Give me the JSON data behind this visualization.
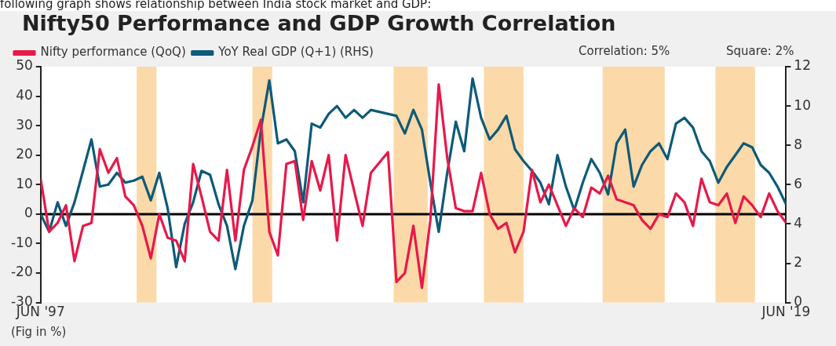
{
  "chart_data": {
    "type": "line",
    "title": "Nifty50 Performance and GDP Growth Correlation",
    "annotations": [
      "following graph shows relationship between India stock market and GDP:",
      "Correlation: 5%",
      "Square: 2%",
      "(Fig in %)"
    ],
    "xlim": [
      "1997-06",
      "2019-06"
    ],
    "xticks": [
      {
        "value": "1997-06",
        "label": "JUN '97"
      },
      {
        "value": "2019-06",
        "label": "JUN '19"
      }
    ],
    "ylim": [
      -30,
      50
    ],
    "yticks": [
      -30,
      -20,
      -10,
      0,
      10,
      20,
      30,
      40,
      50
    ],
    "y2lim": [
      0,
      12
    ],
    "y2ticks": [
      0,
      2,
      4,
      6,
      8,
      10,
      12
    ],
    "legend": "top left",
    "series": [
      {
        "name": "Nifty performance (QoQ)",
        "color": "#e8194a",
        "x": [
          "1997-06",
          "1997-09",
          "1997-12",
          "1998-03",
          "1998-06",
          "1998-09",
          "1998-12",
          "1999-03",
          "1999-06",
          "1999-09",
          "1999-12",
          "2000-03",
          "2000-06",
          "2000-09",
          "2000-12",
          "2001-03",
          "2001-06",
          "2001-09",
          "2001-12",
          "2002-03",
          "2002-06",
          "2002-09",
          "2002-12",
          "2003-03",
          "2003-06",
          "2003-09",
          "2003-12",
          "2004-03",
          "2004-06",
          "2004-09",
          "2004-12",
          "2005-03",
          "2005-06",
          "2005-09",
          "2005-12",
          "2006-03",
          "2006-06",
          "2006-12",
          "2007-03",
          "2007-09",
          "2007-12",
          "2008-03",
          "2008-06",
          "2008-09",
          "2008-12",
          "2009-03",
          "2009-06",
          "2009-09",
          "2009-12",
          "2010-03",
          "2010-06",
          "2010-09",
          "2010-12",
          "2011-03",
          "2011-06",
          "2011-09",
          "2011-12",
          "2012-03",
          "2012-06",
          "2012-12",
          "2013-03",
          "2013-06",
          "2013-09",
          "2013-12",
          "2014-03",
          "2014-06",
          "2014-09",
          "2014-12",
          "2015-03",
          "2015-06",
          "2015-09",
          "2015-12",
          "2016-03",
          "2016-06",
          "2016-09",
          "2016-12",
          "2017-03",
          "2017-06",
          "2017-09",
          "2017-12",
          "2018-03",
          "2018-06",
          "2018-09",
          "2018-12",
          "2019-03",
          "2019-06"
        ],
        "values": [
          12,
          -6,
          -3,
          3,
          -16,
          -4,
          -3,
          22,
          14,
          19,
          6,
          3,
          -4,
          -15,
          0,
          -8,
          -9,
          -16,
          17,
          6,
          -6,
          -9,
          15,
          -9,
          15,
          23,
          32,
          -6,
          -14,
          17,
          18,
          -2,
          18,
          8,
          20,
          -9,
          20,
          -4,
          14,
          21,
          -23,
          -20,
          -4,
          -25,
          -2,
          44,
          19,
          2,
          1,
          1,
          14,
          0,
          -5,
          -3,
          -13,
          -6,
          15,
          4,
          10,
          -4,
          2,
          -1,
          9,
          7,
          13,
          5,
          4,
          3,
          -2,
          -5,
          0,
          -1,
          7,
          4,
          -4,
          12,
          4,
          3,
          7,
          -3,
          6,
          3,
          -1,
          7,
          1,
          -3
        ]
      },
      {
        "name": "YoY Real GDP (Q+1) (RHS)",
        "color": "#0e5a78",
        "axis": "y2",
        "x": [
          "1997-06",
          "1997-09",
          "1997-12",
          "1998-03",
          "1998-06",
          "1998-09",
          "1998-12",
          "1999-03",
          "1999-06",
          "1999-09",
          "1999-12",
          "2000-03",
          "2000-06",
          "2000-09",
          "2000-12",
          "2001-03",
          "2001-06",
          "2001-09",
          "2001-12",
          "2002-03",
          "2002-06",
          "2002-09",
          "2002-12",
          "2003-03",
          "2003-06",
          "2003-09",
          "2003-12",
          "2004-03",
          "2004-06",
          "2004-09",
          "2004-12",
          "2005-03",
          "2005-06",
          "2005-09",
          "2005-12",
          "2006-03",
          "2006-06",
          "2006-09",
          "2006-12",
          "2007-03",
          "2007-06",
          "2007-09",
          "2007-12",
          "2008-03",
          "2008-06",
          "2008-09",
          "2008-12",
          "2009-03",
          "2009-06",
          "2009-09",
          "2009-12",
          "2010-03",
          "2010-06",
          "2010-09",
          "2010-12",
          "2011-03",
          "2011-06",
          "2011-09",
          "2011-12",
          "2012-03",
          "2012-06",
          "2012-09",
          "2012-12",
          "2013-03",
          "2013-06",
          "2013-09",
          "2013-12",
          "2014-03",
          "2014-06",
          "2014-09",
          "2014-12",
          "2015-03",
          "2015-06",
          "2015-09",
          "2015-12",
          "2016-03",
          "2016-06",
          "2016-09",
          "2016-12",
          "2017-03",
          "2017-06",
          "2017-09",
          "2017-12",
          "2018-03",
          "2018-06",
          "2018-09",
          "2018-12",
          "2019-03",
          "2019-06"
        ],
        "values": [
          4.5,
          3.6,
          5.1,
          3.9,
          5.1,
          6.7,
          8.3,
          5.9,
          6.0,
          6.6,
          6.1,
          6.2,
          6.4,
          5.2,
          6.6,
          4.8,
          1.8,
          4.0,
          5.1,
          6.7,
          6.5,
          5.0,
          3.9,
          1.7,
          3.9,
          5.2,
          8.8,
          11.3,
          8.1,
          8.3,
          7.7,
          5.1,
          9.1,
          8.9,
          9.6,
          10,
          9.4,
          9.8,
          9.4,
          9.8,
          9.7,
          9.6,
          9.5,
          8.6,
          9.8,
          8.8,
          6.1,
          3.6,
          6.6,
          9.2,
          7.7,
          11.4,
          9.4,
          8.3,
          8.8,
          9.5,
          7.8,
          7.2,
          6.7,
          6.1,
          5.0,
          7.5,
          5.9,
          4.7,
          6.1,
          7.3,
          6.6,
          5.5,
          8.1,
          8.8,
          5.9,
          7.0,
          7.7,
          8.1,
          7.3,
          9.1,
          9.4,
          8.9,
          7.7,
          7.2,
          6.1,
          6.9,
          7.5,
          8.1,
          7.9,
          7.0,
          6.6,
          5.9,
          5.0
        ]
      }
    ],
    "ref_lines": [
      {
        "axis": "y",
        "value": 0,
        "color": "#000000"
      }
    ],
    "bands": [
      {
        "axis": "x",
        "from": "2000-04",
        "to": "2000-11",
        "color": "#fcd9a8"
      },
      {
        "axis": "x",
        "from": "2003-09",
        "to": "2004-04",
        "color": "#fcd9a8"
      },
      {
        "axis": "x",
        "from": "2007-11",
        "to": "2008-11",
        "color": "#fcd9a8"
      },
      {
        "axis": "x",
        "from": "2010-07",
        "to": "2011-09",
        "color": "#fcd9a8"
      },
      {
        "axis": "x",
        "from": "2014-01",
        "to": "2015-11",
        "color": "#fcd9a8"
      },
      {
        "axis": "x",
        "from": "2017-05",
        "to": "2018-07",
        "color": "#fcd9a8"
      }
    ]
  }
}
